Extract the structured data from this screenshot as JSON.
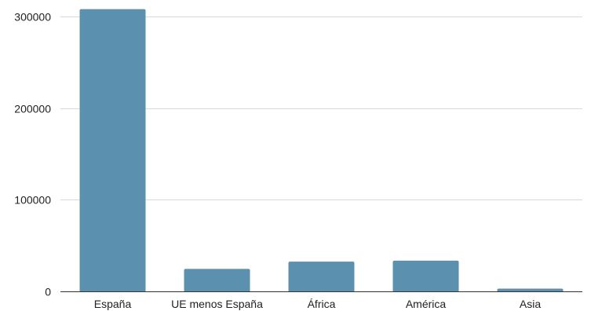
{
  "chart_data": {
    "type": "bar",
    "title": "",
    "xlabel": "",
    "ylabel": "",
    "categories": [
      "España",
      "UE menos España",
      "África",
      "América",
      "Asia"
    ],
    "values": [
      308000,
      24500,
      32500,
      33500,
      3000
    ],
    "ylim": [
      0,
      300000
    ],
    "yticks": [
      0,
      100000,
      200000,
      300000
    ],
    "ytick_labels": [
      "0",
      "100000",
      "200000",
      "300000"
    ],
    "grid": true,
    "legend": "none",
    "colors": {
      "bar": "#5b91af",
      "grid": "#d9d9d9",
      "axis": "#333333",
      "text": "#222222"
    }
  }
}
